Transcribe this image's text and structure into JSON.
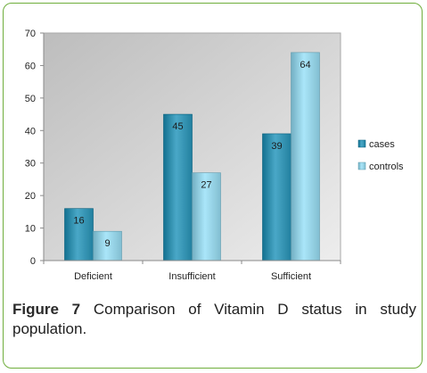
{
  "chart_data": {
    "type": "bar",
    "categories": [
      "Deficient",
      "Insufficient",
      "Sufficient"
    ],
    "series": [
      {
        "name": "cases",
        "values": [
          16,
          45,
          39
        ],
        "color": "#2c8aa9"
      },
      {
        "name": "controls",
        "values": [
          9,
          27,
          64
        ],
        "color": "#8cc8db"
      }
    ],
    "ylim": [
      0,
      70
    ],
    "yticks": [
      0,
      10,
      20,
      30,
      40,
      50,
      60,
      70
    ],
    "grid": false,
    "legend_position": "right",
    "data_labels": true
  },
  "caption": {
    "label": "Figure 7",
    "text": "Comparison of Vitamin D status in study population."
  },
  "colors": {
    "frame_border": "#6fae3c",
    "plot_background": "#d6d6d6",
    "axis": "#8a8a8a"
  }
}
